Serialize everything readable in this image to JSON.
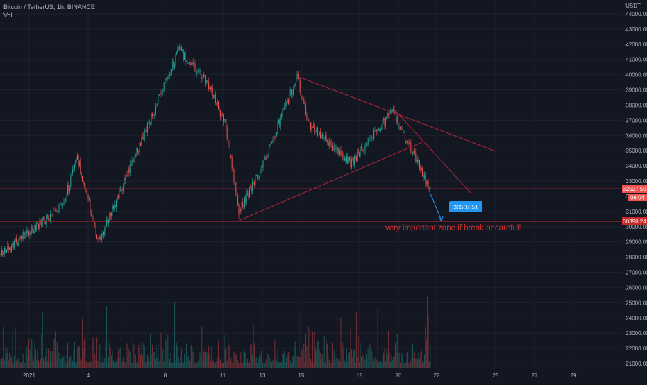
{
  "header": {
    "symbol": "Bitcoin / TetherUS, 1h, BINANCE",
    "vol_label": "Vol"
  },
  "price_axis": {
    "currency": "USDT",
    "ticks": [
      "44000.00",
      "43000.00",
      "42000.00",
      "41000.00",
      "40000.00",
      "39000.00",
      "38000.00",
      "37000.00",
      "36000.00",
      "35000.00",
      "34000.00",
      "33000.00",
      "32000.00",
      "31000.00",
      "30000.00",
      "29000.00",
      "28000.00",
      "27000.00",
      "26000.00",
      "25000.00",
      "24000.00",
      "23000.00",
      "22000.00",
      "21000.00"
    ]
  },
  "time_axis": {
    "ticks": [
      "2021",
      "4",
      "8",
      "11",
      "13",
      "15",
      "18",
      "20",
      "22",
      "25",
      "27",
      "29"
    ]
  },
  "badges": {
    "last_price": "32527.50",
    "countdown": "06:04",
    "level": "30390.24",
    "callout": "30507.51"
  },
  "annotation": "very important zone.if break becareful!",
  "colors": {
    "up": "#26a69a",
    "down": "#ef5350",
    "trendline": "#b2223c",
    "callout": "#2196f3"
  },
  "chart_data": {
    "type": "candlestick",
    "title": "Bitcoin / TetherUS, 1h, BINANCE",
    "ylabel": "USDT",
    "ylim": [
      21000,
      44000
    ],
    "x": [
      "2021",
      "4",
      "8",
      "11",
      "13",
      "15",
      "18",
      "20",
      "22",
      "25",
      "27",
      "29"
    ],
    "price_path": [
      {
        "x": "2021",
        "y": 28500
      },
      {
        "x": "4",
        "y": 33000
      },
      {
        "x": "4",
        "y": 34600
      },
      {
        "x": "4",
        "y": 31000
      },
      {
        "x": "8",
        "y": 36000
      },
      {
        "x": "8",
        "y": 41500
      },
      {
        "x": "11",
        "y": 39500
      },
      {
        "x": "11",
        "y": 32200
      },
      {
        "x": "11",
        "y": 30600
      },
      {
        "x": "13",
        "y": 34000
      },
      {
        "x": "15",
        "y": 40100
      },
      {
        "x": "15",
        "y": 37000
      },
      {
        "x": "18",
        "y": 34000
      },
      {
        "x": "20",
        "y": 37600
      },
      {
        "x": "20",
        "y": 35600
      },
      {
        "x": "22",
        "y": 32500
      }
    ],
    "horizontal_lines": [
      32527.5,
      30390.24
    ],
    "last_price": 32527.5
  }
}
